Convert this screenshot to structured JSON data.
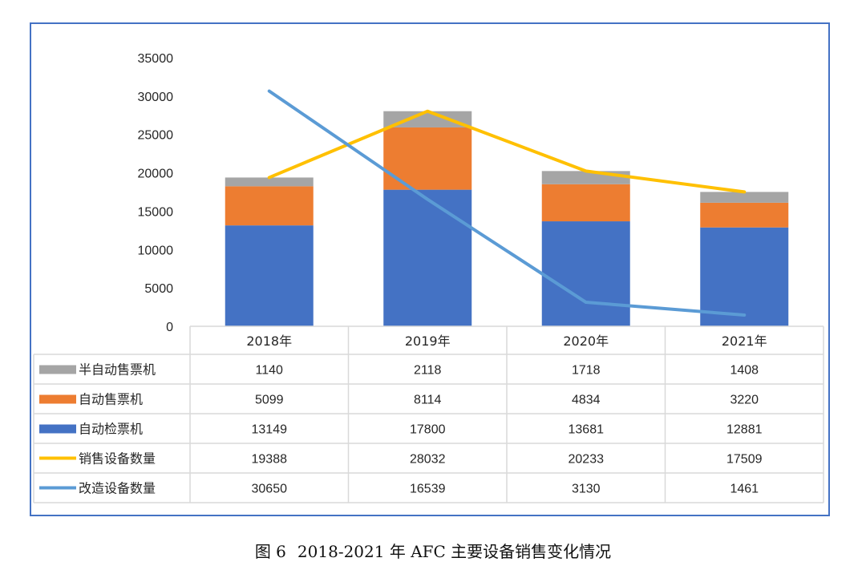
{
  "chart_data": {
    "type": "bar",
    "stacked": true,
    "categories": [
      "2018年",
      "2019年",
      "2020年",
      "2021年"
    ],
    "ylim": [
      0,
      35000
    ],
    "yticks": [
      0,
      5000,
      10000,
      15000,
      20000,
      25000,
      30000,
      35000
    ],
    "grid": false,
    "series": [
      {
        "name": "半自动售票机",
        "kind": "bar",
        "color": "#a5a5a5",
        "values": [
          1140,
          2118,
          1718,
          1408
        ]
      },
      {
        "name": "自动售票机",
        "kind": "bar",
        "color": "#ed7d31",
        "values": [
          5099,
          8114,
          4834,
          3220
        ]
      },
      {
        "name": "自动检票机",
        "kind": "bar",
        "color": "#4472c4",
        "values": [
          13149,
          17800,
          13681,
          12881
        ]
      },
      {
        "name": "销售设备数量",
        "kind": "line",
        "color": "#ffc000",
        "values": [
          19388,
          28032,
          20233,
          17509
        ]
      },
      {
        "name": "改造设备数量",
        "kind": "line",
        "color": "#5b9bd5",
        "values": [
          30650,
          16539,
          3130,
          1461
        ]
      }
    ]
  },
  "caption": {
    "figure_no": "图 6",
    "text": "2018-2021 年 AFC 主要设备销售变化情况"
  }
}
